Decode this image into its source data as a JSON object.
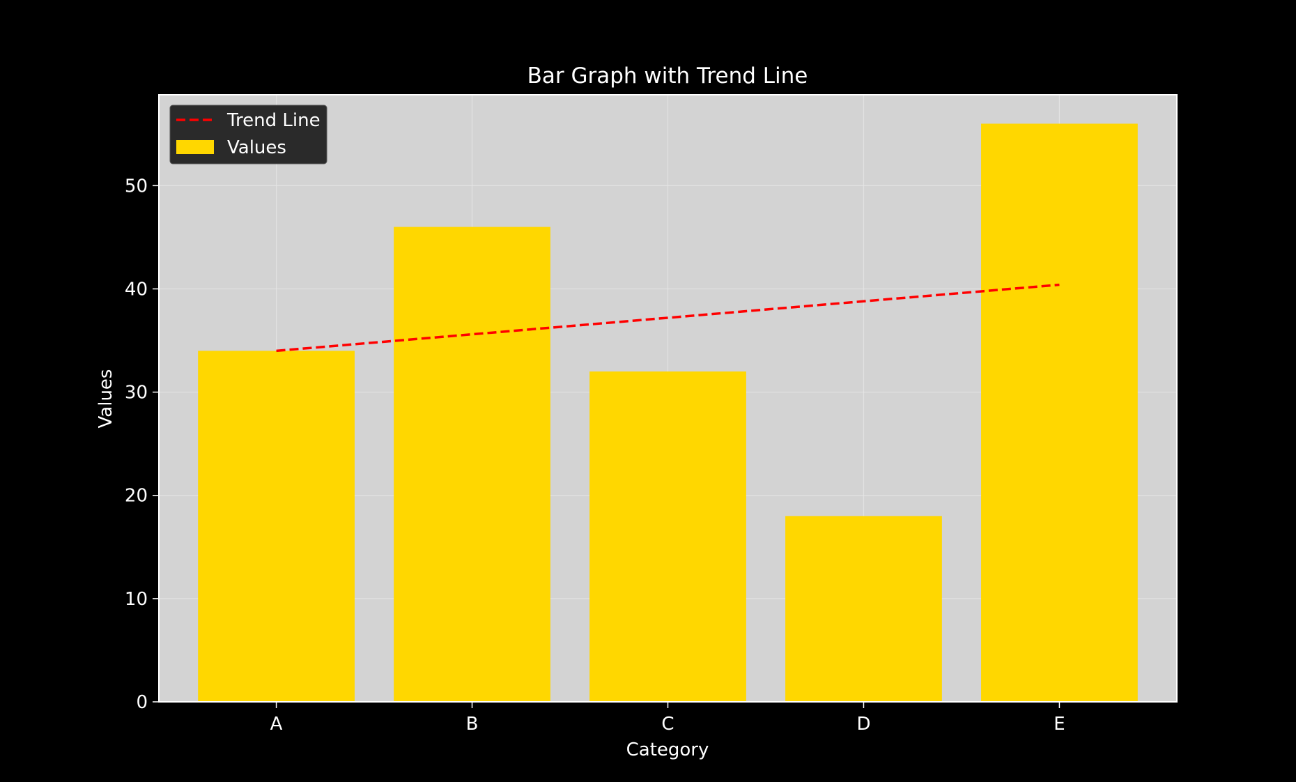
{
  "colors": {
    "background": "#000000",
    "plot_area": "#d3d3d3",
    "grid": "#e6e6e6",
    "bar": "#ffd700",
    "trend": "#ff0000",
    "legend_bg": "#2a2a2a",
    "text": "#ffffff"
  },
  "chart_data": {
    "type": "bar",
    "title": "Bar Graph with Trend Line",
    "xlabel": "Category",
    "ylabel": "Values",
    "categories": [
      "A",
      "B",
      "C",
      "D",
      "E"
    ],
    "series": [
      {
        "name": "Values",
        "type": "bar",
        "values": [
          34,
          46,
          32,
          18,
          56
        ]
      },
      {
        "name": "Trend Line",
        "type": "line",
        "style": "dashed",
        "values": [
          34.0,
          35.6,
          37.2,
          38.8,
          40.4
        ]
      }
    ],
    "ylim": [
      0,
      58.8
    ],
    "yticks": [
      0,
      10,
      20,
      30,
      40,
      50
    ],
    "grid": true,
    "legend_position": "top-left"
  }
}
